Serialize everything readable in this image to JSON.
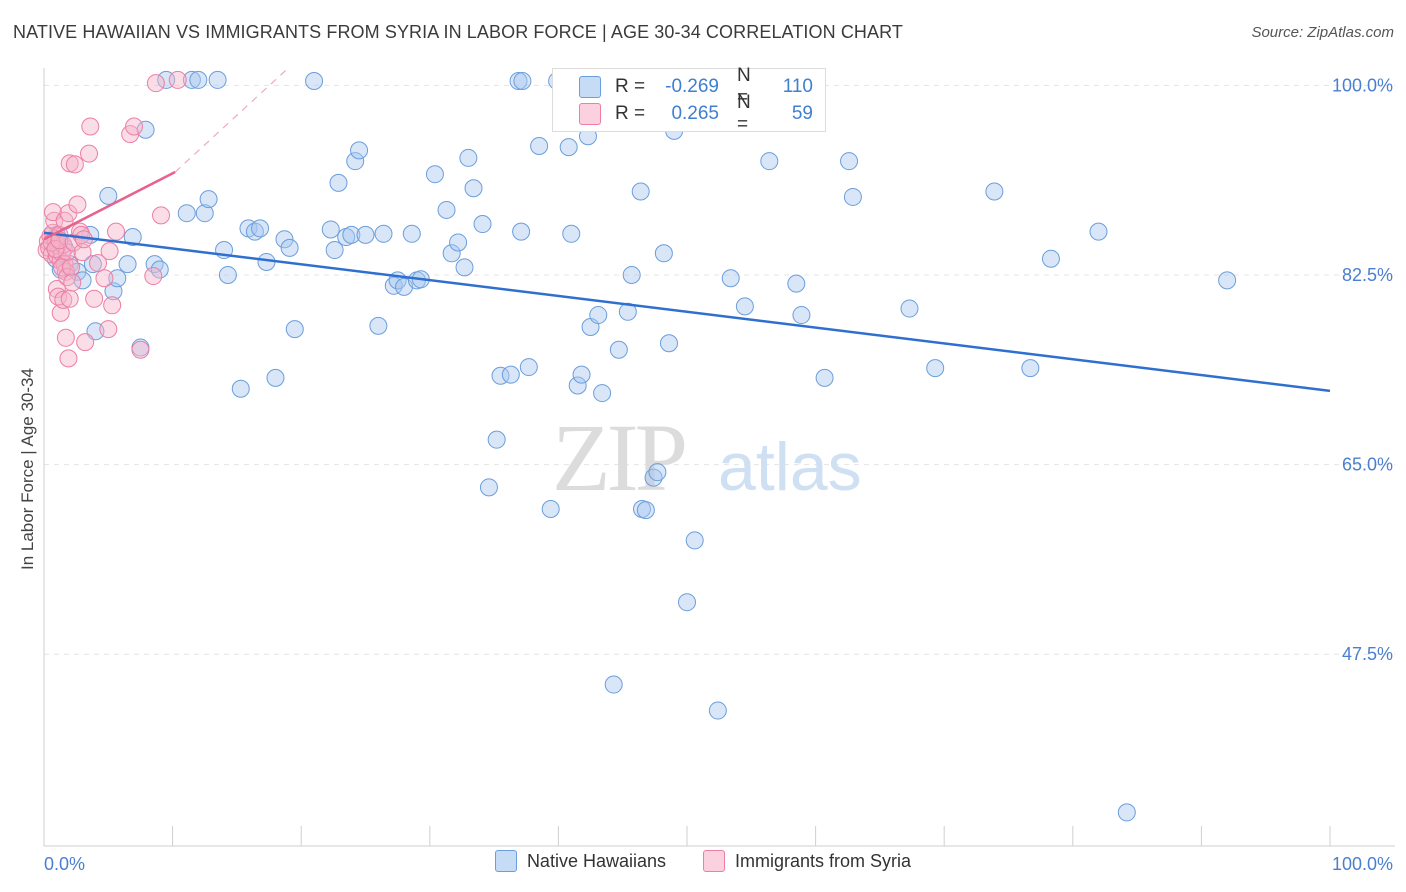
{
  "title": "NATIVE HAWAIIAN VS IMMIGRANTS FROM SYRIA IN LABOR FORCE | AGE 30-34 CORRELATION CHART",
  "source": "Source: ZipAtlas.com",
  "watermark": {
    "zip": "ZIP",
    "atlas": "atlas"
  },
  "stats": [
    {
      "r_label": "R =",
      "r_value": "-0.269",
      "n_label": "N =",
      "n_value": "110",
      "color": "#a9c8f0"
    },
    {
      "r_label": "R =",
      "r_value": "0.265",
      "n_label": "N =",
      "n_value": "59",
      "color": "#f5b3c9"
    }
  ],
  "colors": {
    "blue_fill": "#a9c8f0",
    "blue_stroke": "#6b9edc",
    "blue_line": "#2f6fcf",
    "pink_fill": "#f5b3c9",
    "pink_stroke": "#ec7fa3",
    "pink_line": "#e8628e",
    "tick_label": "#4a7fd0"
  },
  "chart_data": {
    "type": "scatter",
    "xlabel": "",
    "ylabel": "In Labor Force | Age 30-34",
    "xlim": [
      0,
      100
    ],
    "ylim": [
      29.8,
      101.6
    ],
    "x_tick_labels": [
      "0.0%",
      "100.0%"
    ],
    "y_ticks": [
      47.5,
      65.0,
      82.5,
      100.0
    ],
    "y_tick_labels": [
      "47.5%",
      "65.0%",
      "82.5%",
      "100.0%"
    ],
    "grid": true,
    "legend": "bottom-center",
    "series": [
      {
        "name": "Native Hawaiians",
        "trend": {
          "x": [
            0,
            100
          ],
          "y": [
            86.4,
            71.8
          ]
        },
        "points": [
          [
            0.9,
            84.0
          ],
          [
            1.0,
            86.2
          ],
          [
            1.3,
            83.0
          ],
          [
            1.6,
            85.0
          ],
          [
            2.0,
            83.5
          ],
          [
            2.6,
            82.8
          ],
          [
            3.0,
            82.0
          ],
          [
            3.6,
            86.2
          ],
          [
            4.0,
            77.3
          ],
          [
            3.8,
            83.5
          ],
          [
            5.4,
            81.0
          ],
          [
            5.7,
            82.2
          ],
          [
            6.5,
            83.5
          ],
          [
            6.9,
            86.0
          ],
          [
            5.0,
            89.8
          ],
          [
            7.5,
            75.8
          ],
          [
            7.9,
            95.9
          ],
          [
            8.6,
            83.5
          ],
          [
            9.0,
            83.0
          ],
          [
            9.5,
            100.5
          ],
          [
            11.5,
            100.5
          ],
          [
            11.1,
            88.2
          ],
          [
            12.5,
            88.2
          ],
          [
            12.8,
            89.5
          ],
          [
            13.5,
            100.5
          ],
          [
            12.0,
            100.5
          ],
          [
            14.0,
            84.8
          ],
          [
            14.3,
            82.5
          ],
          [
            15.3,
            72.0
          ],
          [
            15.9,
            86.8
          ],
          [
            16.4,
            86.5
          ],
          [
            16.8,
            86.8
          ],
          [
            17.3,
            83.7
          ],
          [
            18.0,
            73.0
          ],
          [
            18.7,
            85.8
          ],
          [
            19.1,
            85.0
          ],
          [
            19.5,
            77.5
          ],
          [
            21.0,
            100.4
          ],
          [
            22.3,
            86.7
          ],
          [
            22.6,
            84.8
          ],
          [
            22.9,
            91.0
          ],
          [
            23.5,
            86.0
          ],
          [
            23.9,
            86.2
          ],
          [
            24.2,
            93.0
          ],
          [
            24.5,
            94.0
          ],
          [
            25.0,
            86.2
          ],
          [
            26.0,
            77.8
          ],
          [
            26.4,
            86.3
          ],
          [
            27.2,
            81.5
          ],
          [
            27.5,
            82.0
          ],
          [
            28.0,
            81.4
          ],
          [
            28.6,
            86.3
          ],
          [
            29.0,
            82.0
          ],
          [
            29.3,
            82.1
          ],
          [
            30.4,
            91.8
          ],
          [
            31.3,
            88.5
          ],
          [
            31.7,
            84.5
          ],
          [
            32.2,
            85.5
          ],
          [
            32.7,
            83.2
          ],
          [
            33.0,
            93.3
          ],
          [
            33.4,
            90.5
          ],
          [
            34.1,
            87.2
          ],
          [
            34.6,
            62.9
          ],
          [
            35.2,
            67.3
          ],
          [
            35.5,
            73.2
          ],
          [
            36.3,
            73.3
          ],
          [
            37.1,
            86.5
          ],
          [
            36.9,
            100.4
          ],
          [
            37.2,
            100.4
          ],
          [
            37.7,
            74.0
          ],
          [
            38.5,
            94.4
          ],
          [
            39.4,
            60.9
          ],
          [
            39.9,
            100.4
          ],
          [
            40.8,
            94.3
          ],
          [
            41.0,
            86.3
          ],
          [
            41.5,
            72.3
          ],
          [
            41.8,
            73.3
          ],
          [
            42.3,
            95.3
          ],
          [
            42.5,
            77.7
          ],
          [
            43.1,
            78.8
          ],
          [
            43.4,
            71.6
          ],
          [
            44.3,
            44.7
          ],
          [
            44.7,
            75.6
          ],
          [
            45.4,
            79.1
          ],
          [
            45.7,
            82.5
          ],
          [
            46.5,
            60.9
          ],
          [
            46.8,
            60.8
          ],
          [
            46.4,
            90.2
          ],
          [
            47.4,
            63.8
          ],
          [
            47.7,
            64.3
          ],
          [
            48.2,
            84.5
          ],
          [
            48.6,
            76.2
          ],
          [
            49.0,
            95.8
          ],
          [
            50.0,
            52.3
          ],
          [
            50.6,
            58.0
          ],
          [
            52.4,
            42.3
          ],
          [
            53.4,
            82.2
          ],
          [
            54.5,
            79.6
          ],
          [
            56.4,
            93.0
          ],
          [
            57.7,
            100.3
          ],
          [
            58.5,
            81.7
          ],
          [
            58.9,
            78.8
          ],
          [
            60.7,
            73.0
          ],
          [
            62.6,
            93.0
          ],
          [
            62.9,
            89.7
          ],
          [
            67.3,
            79.4
          ],
          [
            69.3,
            73.9
          ],
          [
            73.9,
            90.2
          ],
          [
            76.7,
            73.9
          ],
          [
            78.3,
            84.0
          ],
          [
            82.0,
            86.5
          ],
          [
            84.2,
            32.9
          ],
          [
            92.0,
            82.0
          ]
        ]
      },
      {
        "name": "Immigrants from Syria",
        "trend": {
          "x": [
            0,
            10.2
          ],
          "y": [
            85.8,
            92.0
          ]
        },
        "trend_extended": {
          "x": [
            10.2,
            19.0
          ],
          "y": [
            92.0,
            101.6
          ]
        },
        "points": [
          [
            0.2,
            84.8
          ],
          [
            0.3,
            85.6
          ],
          [
            0.4,
            85.0
          ],
          [
            0.5,
            86.1
          ],
          [
            0.6,
            84.4
          ],
          [
            0.7,
            86.4
          ],
          [
            0.8,
            87.5
          ],
          [
            0.9,
            85.8
          ],
          [
            1.0,
            84.3
          ],
          [
            1.1,
            85.2
          ],
          [
            1.2,
            86.2
          ],
          [
            1.3,
            83.8
          ],
          [
            1.4,
            84.5
          ],
          [
            1.5,
            85.3
          ],
          [
            1.6,
            83.5
          ],
          [
            1.7,
            82.8
          ],
          [
            1.8,
            84.6
          ],
          [
            0.6,
            85.5
          ],
          [
            0.9,
            84.9
          ],
          [
            1.2,
            85.7
          ],
          [
            1.4,
            83.2
          ],
          [
            0.7,
            88.3
          ],
          [
            1.0,
            81.2
          ],
          [
            1.1,
            80.5
          ],
          [
            1.3,
            79.0
          ],
          [
            1.5,
            80.2
          ],
          [
            1.6,
            87.5
          ],
          [
            1.8,
            82.3
          ],
          [
            1.9,
            88.2
          ],
          [
            2.0,
            80.3
          ],
          [
            2.1,
            83.2
          ],
          [
            2.2,
            81.8
          ],
          [
            1.7,
            76.7
          ],
          [
            2.0,
            92.8
          ],
          [
            2.3,
            85.5
          ],
          [
            2.4,
            92.7
          ],
          [
            2.6,
            89.0
          ],
          [
            2.8,
            86.5
          ],
          [
            2.9,
            86.2
          ],
          [
            3.0,
            84.6
          ],
          [
            1.9,
            74.8
          ],
          [
            3.1,
            85.8
          ],
          [
            3.2,
            76.3
          ],
          [
            3.6,
            96.2
          ],
          [
            3.9,
            80.3
          ],
          [
            4.2,
            83.6
          ],
          [
            4.7,
            82.2
          ],
          [
            3.5,
            93.7
          ],
          [
            5.0,
            77.5
          ],
          [
            5.1,
            84.7
          ],
          [
            5.3,
            79.7
          ],
          [
            5.6,
            86.5
          ],
          [
            6.7,
            95.5
          ],
          [
            7.0,
            96.2
          ],
          [
            7.5,
            75.6
          ],
          [
            8.5,
            82.4
          ],
          [
            9.1,
            88.0
          ],
          [
            8.7,
            100.2
          ],
          [
            10.4,
            100.5
          ]
        ]
      }
    ]
  }
}
